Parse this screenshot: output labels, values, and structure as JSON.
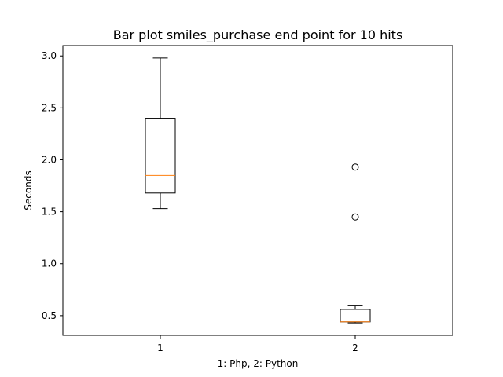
{
  "chart_data": {
    "type": "box",
    "title": "Bar plot smiles_purchase end point for 10 hits",
    "xlabel": "1: Php, 2: Python",
    "ylabel": "Seconds",
    "categories": [
      "1",
      "2"
    ],
    "ylim": [
      0.31,
      3.1
    ],
    "yticks": [
      "0.5",
      "1.0",
      "1.5",
      "2.0",
      "2.5",
      "3.0"
    ],
    "grid": false,
    "colors": {
      "box": "#000000",
      "median": "#ff7f0e",
      "background": "#ffffff"
    },
    "boxes": [
      {
        "category": "1",
        "whisker_low": 1.53,
        "q1": 1.68,
        "median": 1.85,
        "q3": 2.4,
        "whisker_high": 2.98,
        "outliers": []
      },
      {
        "category": "2",
        "whisker_low": 0.43,
        "q1": 0.44,
        "median": 0.44,
        "q3": 0.56,
        "whisker_high": 0.6,
        "outliers": [
          1.45,
          1.93
        ]
      }
    ]
  }
}
